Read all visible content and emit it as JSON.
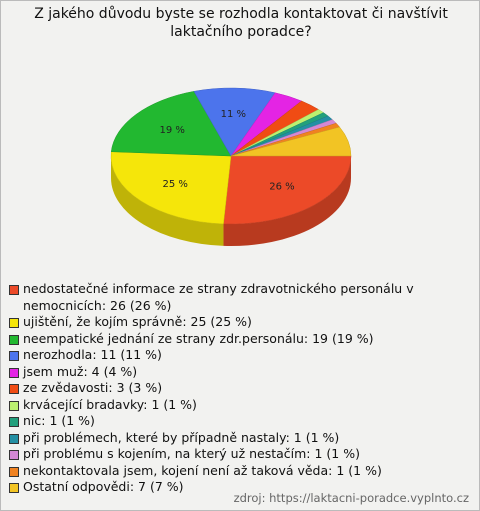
{
  "chart_data": {
    "type": "pie",
    "title": "Z jakého důvodu byste se rozhodla kontaktovat či navštívit laktačního poradce?",
    "categories": [
      "nedostatečné informace ze strany zdravotnického personálu v nemocnicích: 26 (26 %)",
      "ujištění, že kojím správně: 25 (25 %)",
      "neempatické jednání ze strany zdr.personálu: 19 (19 %)",
      "nerozhodla: 11 (11 %)",
      "jsem muž: 4 (4 %)",
      "ze zvědavosti: 3 (3 %)",
      "krvácející bradavky: 1 (1 %)",
      "nic: 1 (1 %)",
      "při problémech, které by případně nastaly: 1 (1 %)",
      "při problému s kojením, na který už nestačím: 1 (1 %)",
      "nekontaktovala jsem, kojení není až taková věda: 1 (1 %)",
      "Ostatní odpovědi: 7 (7 %)"
    ],
    "values": [
      26,
      25,
      19,
      11,
      4,
      3,
      1,
      1,
      1,
      1,
      1,
      7
    ],
    "value_labels": [
      "26 %",
      "25 %",
      "19 %",
      "11 %",
      null,
      null,
      null,
      null,
      null,
      null,
      null,
      null
    ],
    "colors": [
      "#ec4a28",
      "#f5e60a",
      "#22b830",
      "#4c74ec",
      "#e424e4",
      "#f04c14",
      "#bcf070",
      "#22a07c",
      "#2490a4",
      "#d488d4",
      "#f08220",
      "#f2c424"
    ],
    "source": "zdroj: https://laktacni-poradce.vyplnto.cz"
  }
}
